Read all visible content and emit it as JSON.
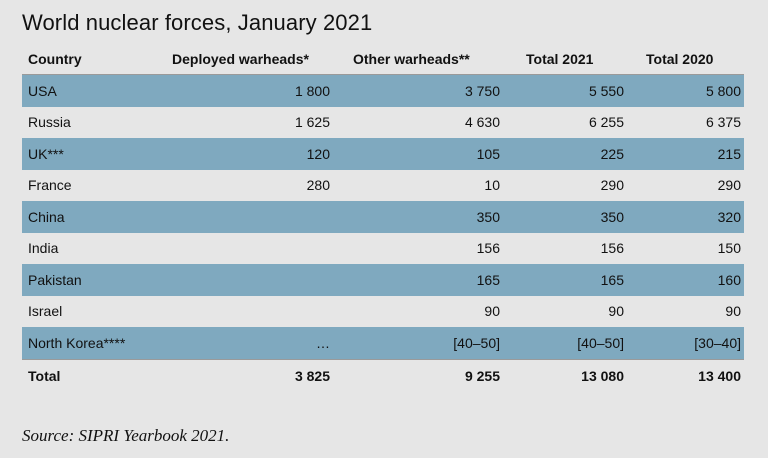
{
  "title": "World nuclear forces, January 2021",
  "source": "Source: SIPRI Yearbook 2021.",
  "colors": {
    "background": "#e6e6e6",
    "shaded_row": "#7fa9bf"
  },
  "chart_data": {
    "type": "table",
    "title": "World nuclear forces, January 2021",
    "columns": [
      "Country",
      "Deployed warheads*",
      "Other warheads**",
      "Total 2021",
      "Total 2020"
    ],
    "rows": [
      [
        "USA",
        "1 800",
        "3 750",
        "5 550",
        "5 800"
      ],
      [
        "Russia",
        "1 625",
        "4 630",
        "6 255",
        "6 375"
      ],
      [
        "UK***",
        "120",
        "105",
        "225",
        "215"
      ],
      [
        "France",
        "280",
        "10",
        "290",
        "290"
      ],
      [
        "China",
        "",
        "350",
        "350",
        "320"
      ],
      [
        "India",
        "",
        "156",
        "156",
        "150"
      ],
      [
        "Pakistan",
        "",
        "165",
        "165",
        "160"
      ],
      [
        "Israel",
        "",
        "90",
        "90",
        "90"
      ],
      [
        "North Korea****",
        "…",
        "[40–50]",
        "[40–50]",
        "[30–40]"
      ]
    ],
    "total": [
      "Total",
      "3 825",
      "9 255",
      "13 080",
      "13 400"
    ]
  }
}
